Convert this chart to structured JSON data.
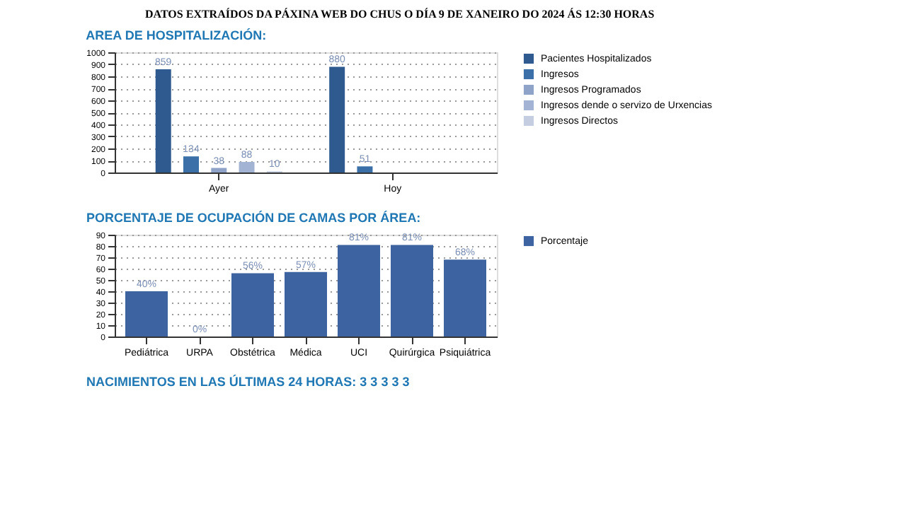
{
  "chart_data": [
    {
      "type": "bar",
      "title": "AREA DE HOSPITALIZACIÓN:",
      "annotations": [
        "DATOS EXTRAÍDOS DA PÁXINA WEB DO CHUS O DÍA 9 DE XANEIRO DO 2024 ÁS 12:30 HORAS"
      ],
      "categories": [
        "Ayer",
        "Hoy"
      ],
      "series": [
        {
          "name": "Pacientes Hospitalizados",
          "color": "#2f5a8f",
          "values": [
            859,
            880
          ]
        },
        {
          "name": "Ingresos",
          "color": "#3b6fa8",
          "values": [
            134,
            51
          ]
        },
        {
          "name": "Ingresos Programados",
          "color": "#8fa3c8",
          "values": [
            38,
            null
          ]
        },
        {
          "name": "Ingresos dende o servizo de Urxencias",
          "color": "#a3b3d3",
          "values": [
            88,
            null
          ]
        },
        {
          "name": "Ingresos Directos",
          "color": "#c5cde0",
          "values": [
            10,
            null
          ]
        }
      ],
      "ylim": [
        0,
        1000
      ],
      "yticks": [
        0,
        100,
        200,
        300,
        400,
        500,
        600,
        700,
        800,
        900,
        1000
      ],
      "grid": "y",
      "legend": "right",
      "data_labels": true
    },
    {
      "type": "bar",
      "title": "PORCENTAJE DE OCUPACIÓN DE CAMAS POR ÁREA:",
      "annotations": [
        "NACIMIENTOS EN LAS ÚLTIMAS 24 HORAS:  3 3 3 3 3"
      ],
      "categories": [
        "Pediátrica",
        "URPA",
        "Obstétrica",
        "Médica",
        "UCI",
        "Quirúrgica",
        "Psiquiátrica"
      ],
      "series": [
        {
          "name": "Porcentaje",
          "color": "#3d64a0",
          "values": [
            40,
            0,
            56,
            57,
            81,
            81,
            68
          ],
          "value_labels": [
            "40%",
            "0%",
            "56%",
            "57%",
            "81%",
            "81%",
            "68%"
          ]
        }
      ],
      "ylim": [
        0,
        90
      ],
      "yticks": [
        0,
        10,
        20,
        30,
        40,
        50,
        60,
        70,
        80,
        90
      ],
      "grid": "y",
      "legend": "right"
    }
  ]
}
